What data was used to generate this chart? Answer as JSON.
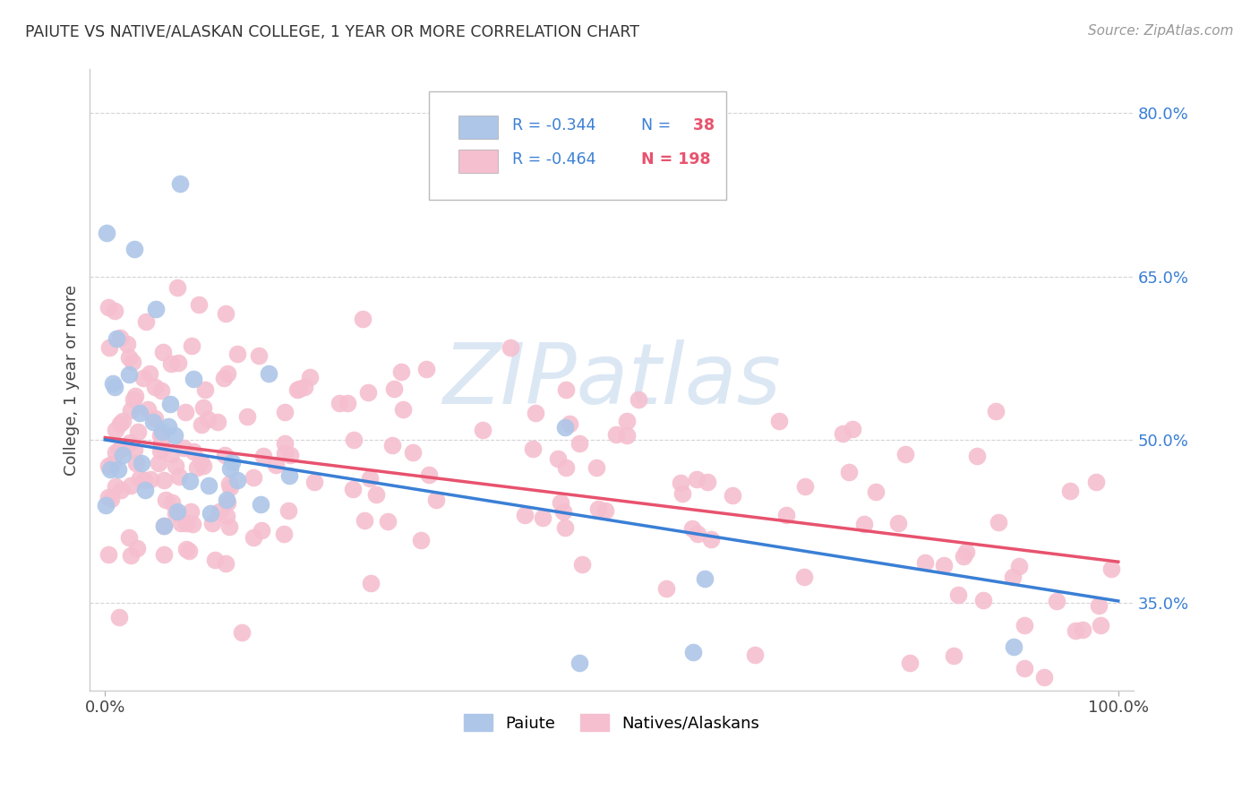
{
  "title": "PAIUTE VS NATIVE/ALASKAN COLLEGE, 1 YEAR OR MORE CORRELATION CHART",
  "source_text": "Source: ZipAtlas.com",
  "ylabel": "College, 1 year or more",
  "xlabel": "",
  "xlim": [
    0.0,
    1.0
  ],
  "ylim": [
    0.27,
    0.84
  ],
  "x_tick_labels": [
    "0.0%",
    "100.0%"
  ],
  "y_tick_values": [
    0.35,
    0.5,
    0.65,
    0.8
  ],
  "y_tick_labels": [
    "35.0%",
    "50.0%",
    "65.0%",
    "80.0%"
  ],
  "background_color": "#ffffff",
  "grid_color": "#c8c8d0",
  "paiute_color": "#aec6e8",
  "native_color": "#f5bfcf",
  "paiute_line_color": "#3a7fd5",
  "native_line_color": "#e8526e",
  "legend_text_color": "#3a7fd5",
  "legend_n_color": "#e8526e",
  "paiute_R": -0.344,
  "paiute_N": 38,
  "native_R": -0.464,
  "native_N": 198,
  "paiute_line_x0": 0.0,
  "paiute_line_y0": 0.5,
  "paiute_line_x1": 1.0,
  "paiute_line_y1": 0.352,
  "native_line_x0": 0.0,
  "native_line_y0": 0.502,
  "native_line_x1": 1.0,
  "native_line_y1": 0.388,
  "watermark_text": "ZIPatlas",
  "watermark_color": "#c5d8ee",
  "watermark_alpha": 0.6
}
